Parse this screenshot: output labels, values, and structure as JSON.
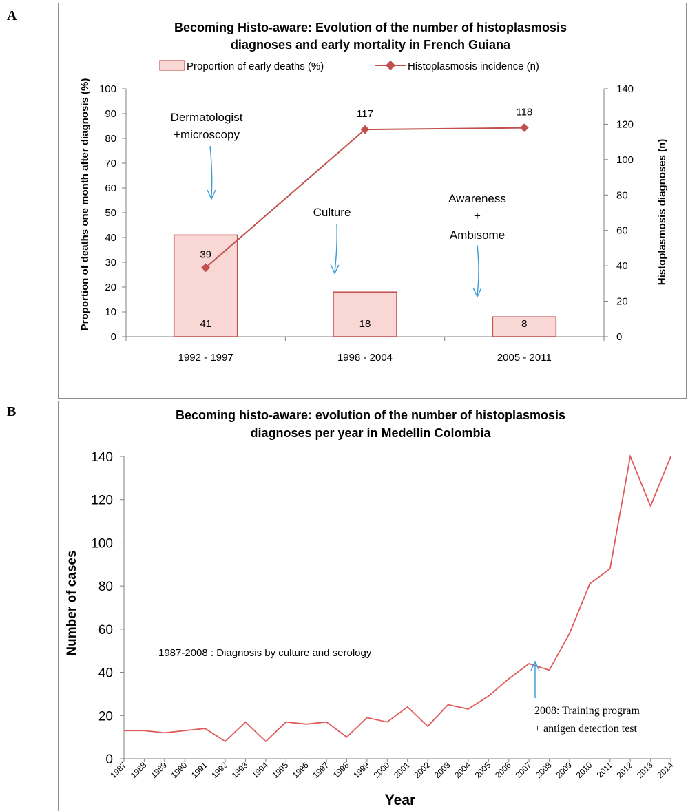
{
  "panels": {
    "a": {
      "letter": "A"
    },
    "b": {
      "letter": "B"
    }
  },
  "colors": {
    "bar_fill": "#f8d7d5",
    "bar_stroke": "#c0504d",
    "line_a": "#c0504d",
    "line_b": "#e05a5a",
    "arrow": "#3b9ad6",
    "axis": "#7f7f7f"
  },
  "chart_data": [
    {
      "type": "bar",
      "title_line1": "Becoming Histo-aware: Evolution of the number of histoplasmosis",
      "title_line2": "diagnoses and early mortality in French Guiana",
      "categories": [
        "1992 - 1997",
        "1998 - 2004",
        "2005 - 2011"
      ],
      "ylabel": "Proportion of deaths one month after diagnosis (%)",
      "y2label": "Histoplasmosis diagnoses (n)",
      "ylim": [
        0,
        100
      ],
      "y2lim": [
        0,
        140
      ],
      "yticks": [
        "0",
        "10",
        "20",
        "30",
        "40",
        "50",
        "60",
        "70",
        "80",
        "90",
        "100"
      ],
      "y2ticks": [
        "0",
        "20",
        "40",
        "60",
        "80",
        "100",
        "120",
        "140"
      ],
      "legend_position": "top",
      "series": [
        {
          "name": "Proportion of early deaths (%)",
          "type": "bar",
          "axis": "left",
          "values": [
            41,
            18,
            8
          ],
          "labels": [
            "41",
            "18",
            "8"
          ]
        },
        {
          "name": "Histoplasmosis incidence (n)",
          "type": "line",
          "axis": "right",
          "values": [
            39,
            117,
            118
          ],
          "labels": [
            "39",
            "117",
            "118"
          ]
        }
      ],
      "annotations": [
        {
          "line1": "Dermatologist",
          "line2": "+microscopy"
        },
        {
          "line1": "Culture"
        },
        {
          "line1": "Awareness",
          "line2": "+",
          "line3": "Ambisome"
        }
      ]
    },
    {
      "type": "line",
      "title_line1": "Becoming histo-aware: evolution of the number of histoplasmosis",
      "title_line2": "diagnoses per year in Medellin Colombia",
      "xlabel": "Year",
      "ylabel": "Number of cases",
      "ylim": [
        0,
        140
      ],
      "yticks": [
        "0",
        "20",
        "40",
        "60",
        "80",
        "100",
        "120",
        "140"
      ],
      "x": [
        "1987",
        "1988",
        "1989",
        "1990",
        "1991",
        "1992",
        "1993",
        "1994",
        "1995",
        "1996",
        "1997",
        "1998",
        "1999",
        "2000",
        "2001",
        "2002",
        "2003",
        "2004",
        "2005",
        "2006",
        "2007",
        "2008",
        "2009",
        "2010",
        "2011",
        "2012",
        "2013",
        "2014"
      ],
      "values": [
        13,
        13,
        12,
        13,
        14,
        8,
        17,
        8,
        17,
        16,
        17,
        10,
        19,
        17,
        24,
        15,
        25,
        23,
        29,
        37,
        44,
        41,
        58,
        81,
        88,
        140,
        117,
        140
      ],
      "annotations": [
        {
          "text": "1987-2008 : Diagnosis by culture and serology"
        },
        {
          "line1": "2008: Training program",
          "line2": "+ antigen detection test"
        }
      ]
    }
  ]
}
